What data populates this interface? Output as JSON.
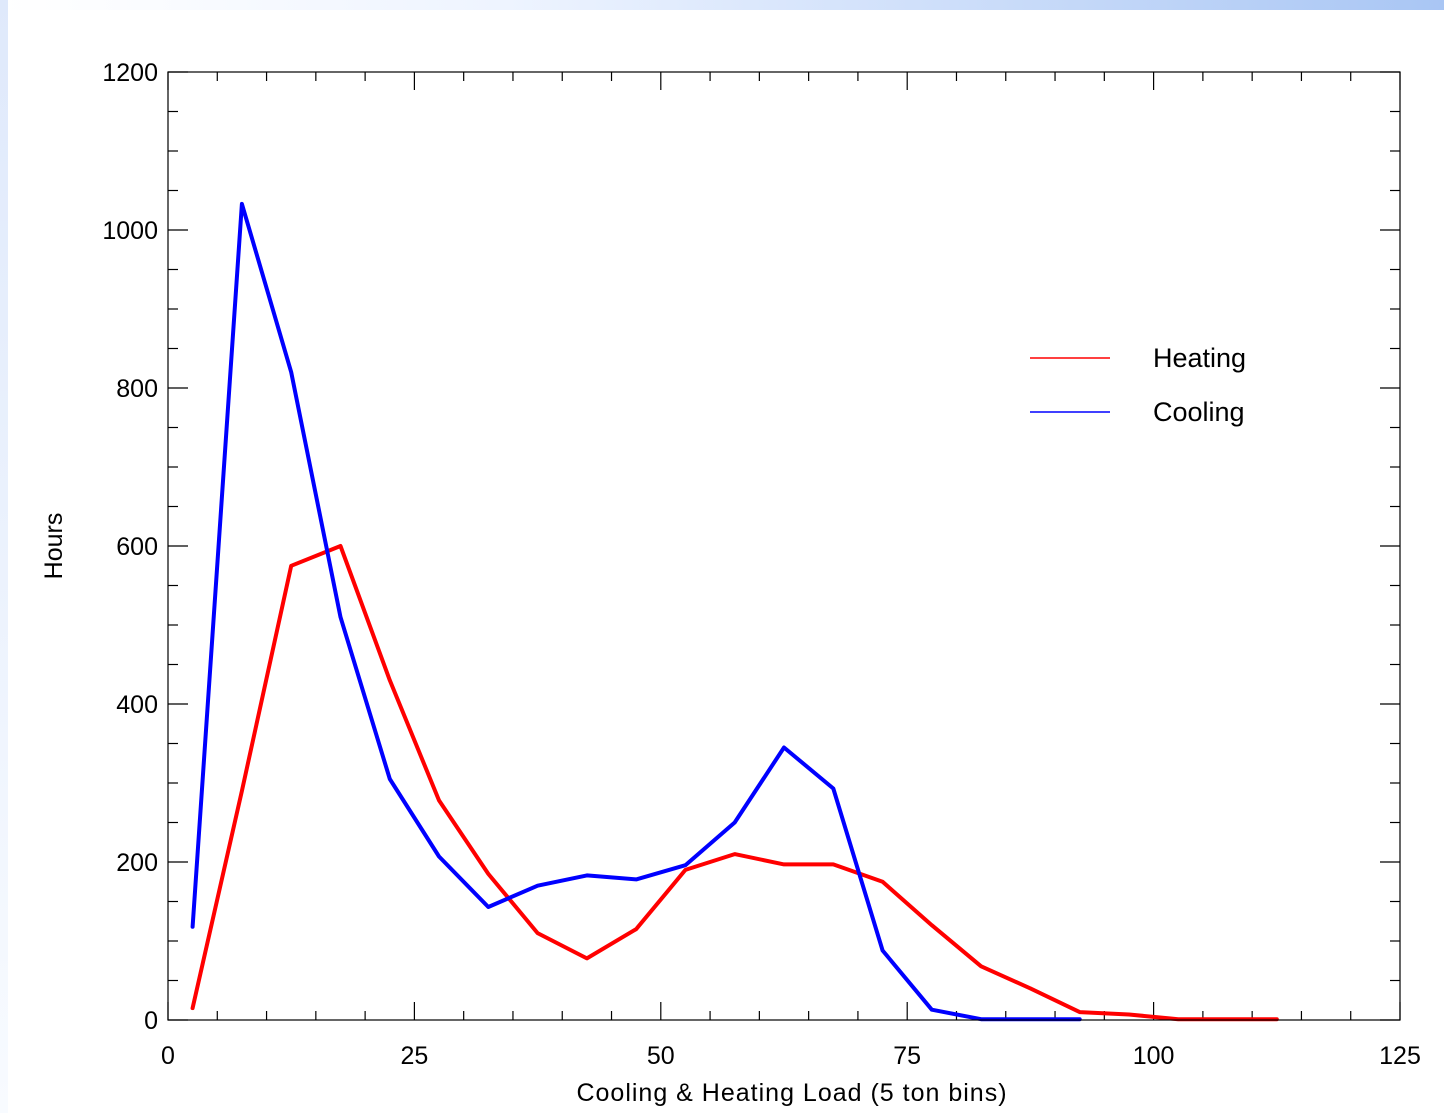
{
  "chart_data": {
    "type": "line",
    "title": "",
    "xlabel": "Cooling & Heating Load (5 ton bins)",
    "ylabel": "Hours",
    "xlim": [
      0,
      125
    ],
    "ylim": [
      0,
      1200
    ],
    "x_ticks": [
      "0",
      "25",
      "50",
      "75",
      "100",
      "125"
    ],
    "y_ticks": [
      "0",
      "200",
      "400",
      "600",
      "800",
      "1000",
      "1200"
    ],
    "grid": false,
    "legend_position": "top-right",
    "series": [
      {
        "name": "Heating",
        "color": "#ff0000",
        "x": [
          2.5,
          7.5,
          12.5,
          17.5,
          22.5,
          27.5,
          32.5,
          37.5,
          42.5,
          47.5,
          52.5,
          57.5,
          62.5,
          67.5,
          72.5,
          77.5,
          82.5,
          87.5,
          92.5,
          97.5,
          102.5,
          107.5,
          112.5
        ],
        "y": [
          15,
          290,
          575,
          600,
          430,
          278,
          185,
          110,
          78,
          115,
          190,
          210,
          197,
          197,
          175,
          120,
          68,
          40,
          10,
          7,
          1,
          1,
          1
        ]
      },
      {
        "name": "Cooling",
        "color": "#0000ff",
        "x": [
          2.5,
          7.5,
          12.5,
          17.5,
          22.5,
          27.5,
          32.5,
          37.5,
          42.5,
          47.5,
          52.5,
          57.5,
          62.5,
          67.5,
          72.5,
          77.5,
          82.5,
          87.5,
          92.5
        ],
        "y": [
          118,
          1033,
          820,
          510,
          305,
          207,
          143,
          170,
          183,
          178,
          196,
          250,
          345,
          293,
          88,
          13,
          1,
          1,
          1
        ]
      }
    ]
  }
}
